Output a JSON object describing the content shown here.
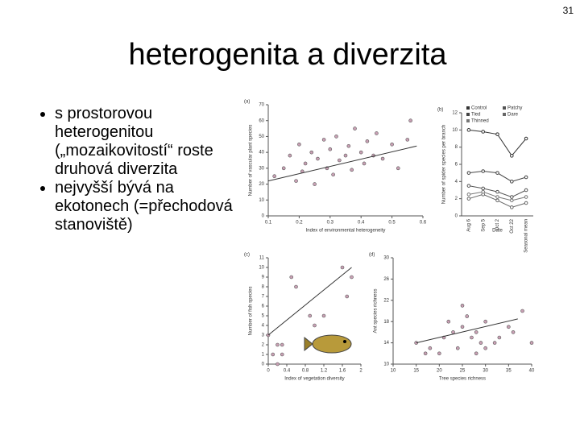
{
  "page_number": "31",
  "title": "heterogenita a diverzita",
  "bullets": [
    "s prostorovou heterogenitou („mozaikovitostí“ roste druhová diverzita",
    "nejvyšší bývá na ekotonech (=přechodová stanoviště)"
  ],
  "figure": {
    "panels": [
      {
        "type": "scatter",
        "label": "(a)",
        "ylabel": "Number of vascular plant species",
        "xlabel": "Index of environmental heterogeneity",
        "xlim": [
          0.1,
          0.6
        ],
        "xticks": [
          0.1,
          0.2,
          0.3,
          0.4,
          0.5,
          0.6
        ],
        "ylim": [
          0,
          70
        ],
        "yticks": [
          0,
          10,
          20,
          30,
          40,
          50,
          60,
          70
        ],
        "color": "#c9a0b4",
        "x": [
          0.12,
          0.15,
          0.17,
          0.19,
          0.2,
          0.21,
          0.22,
          0.24,
          0.25,
          0.26,
          0.28,
          0.29,
          0.3,
          0.31,
          0.32,
          0.33,
          0.35,
          0.36,
          0.37,
          0.38,
          0.4,
          0.41,
          0.42,
          0.44,
          0.45,
          0.47,
          0.5,
          0.52,
          0.55,
          0.56
        ],
        "y": [
          25,
          30,
          38,
          22,
          45,
          28,
          33,
          40,
          20,
          36,
          48,
          30,
          42,
          26,
          50,
          35,
          38,
          44,
          29,
          55,
          40,
          33,
          47,
          38,
          52,
          36,
          45,
          30,
          48,
          60
        ],
        "trend": {
          "x": [
            0.1,
            0.58
          ],
          "y": [
            22,
            44
          ]
        }
      },
      {
        "type": "line",
        "label": "(b)",
        "ylabel": "Number of spider species per branch",
        "xlabel": "Date",
        "categories": [
          "Aug 6",
          "Sep 5",
          "Oct 2",
          "Oct 22",
          "Seasonal mean"
        ],
        "ylim": [
          0,
          12
        ],
        "yticks": [
          0,
          2,
          4,
          6,
          8,
          10,
          12
        ],
        "series": [
          {
            "name": "Control",
            "color": "#333333",
            "values": [
              10,
              9.8,
              9.5,
              7,
              9
            ]
          },
          {
            "name": "Patchy",
            "color": "#555555",
            "values": [
              3.5,
              3.2,
              2.8,
              2.2,
              3
            ]
          },
          {
            "name": "Tied",
            "color": "#444444",
            "values": [
              5,
              5.2,
              5,
              4,
              4.5
            ]
          },
          {
            "name": "Dare",
            "color": "#666666",
            "values": [
              2,
              2.5,
              1.8,
              1,
              1.5
            ]
          },
          {
            "name": "Thinned",
            "color": "#777777",
            "values": [
              2.5,
              2.8,
              2.2,
              1.8,
              2.2
            ]
          }
        ]
      },
      {
        "type": "scatter",
        "label": "(c)",
        "ylabel": "Number of fish species",
        "xlabel": "Index of vegetation diversity",
        "xlim": [
          0,
          2.0
        ],
        "xticks": [
          0,
          0.4,
          0.8,
          1.2,
          1.6,
          2.0
        ],
        "ylim": [
          0,
          11
        ],
        "yticks": [
          0,
          1,
          2,
          3,
          4,
          5,
          6,
          7,
          8,
          9,
          10,
          11
        ],
        "color": "#c9a0b4",
        "x": [
          0,
          0.1,
          0.2,
          0.3,
          0.5,
          0.6,
          0.9,
          1.0,
          1.2,
          1.6,
          1.7,
          1.8,
          0.2,
          0.3
        ],
        "y": [
          3,
          1,
          2,
          2,
          9,
          8,
          5,
          4,
          5,
          10,
          7,
          9,
          0,
          1
        ],
        "trend": {
          "x": [
            0,
            1.8
          ],
          "y": [
            3,
            10
          ]
        }
      },
      {
        "type": "scatter",
        "label": "(d)",
        "ylabel": "Ant species richness",
        "xlabel": "Tree species richness",
        "xlim": [
          10,
          40
        ],
        "xticks": [
          10,
          15,
          20,
          25,
          30,
          35,
          40
        ],
        "ylim": [
          10,
          30
        ],
        "yticks": [
          10,
          14,
          18,
          22,
          26,
          30
        ],
        "color": "#c9a0b4",
        "x": [
          15,
          17,
          18,
          20,
          21,
          22,
          23,
          24,
          25,
          25,
          26,
          27,
          28,
          28,
          29,
          30,
          30,
          32,
          33,
          35,
          36,
          38,
          40
        ],
        "y": [
          14,
          12,
          13,
          12,
          15,
          18,
          16,
          13,
          17,
          21,
          19,
          15,
          16,
          12,
          14,
          18,
          13,
          14,
          15,
          17,
          16,
          20,
          14
        ],
        "trend": {
          "x": [
            15,
            37
          ],
          "y": [
            14,
            18.5
          ]
        }
      }
    ]
  }
}
